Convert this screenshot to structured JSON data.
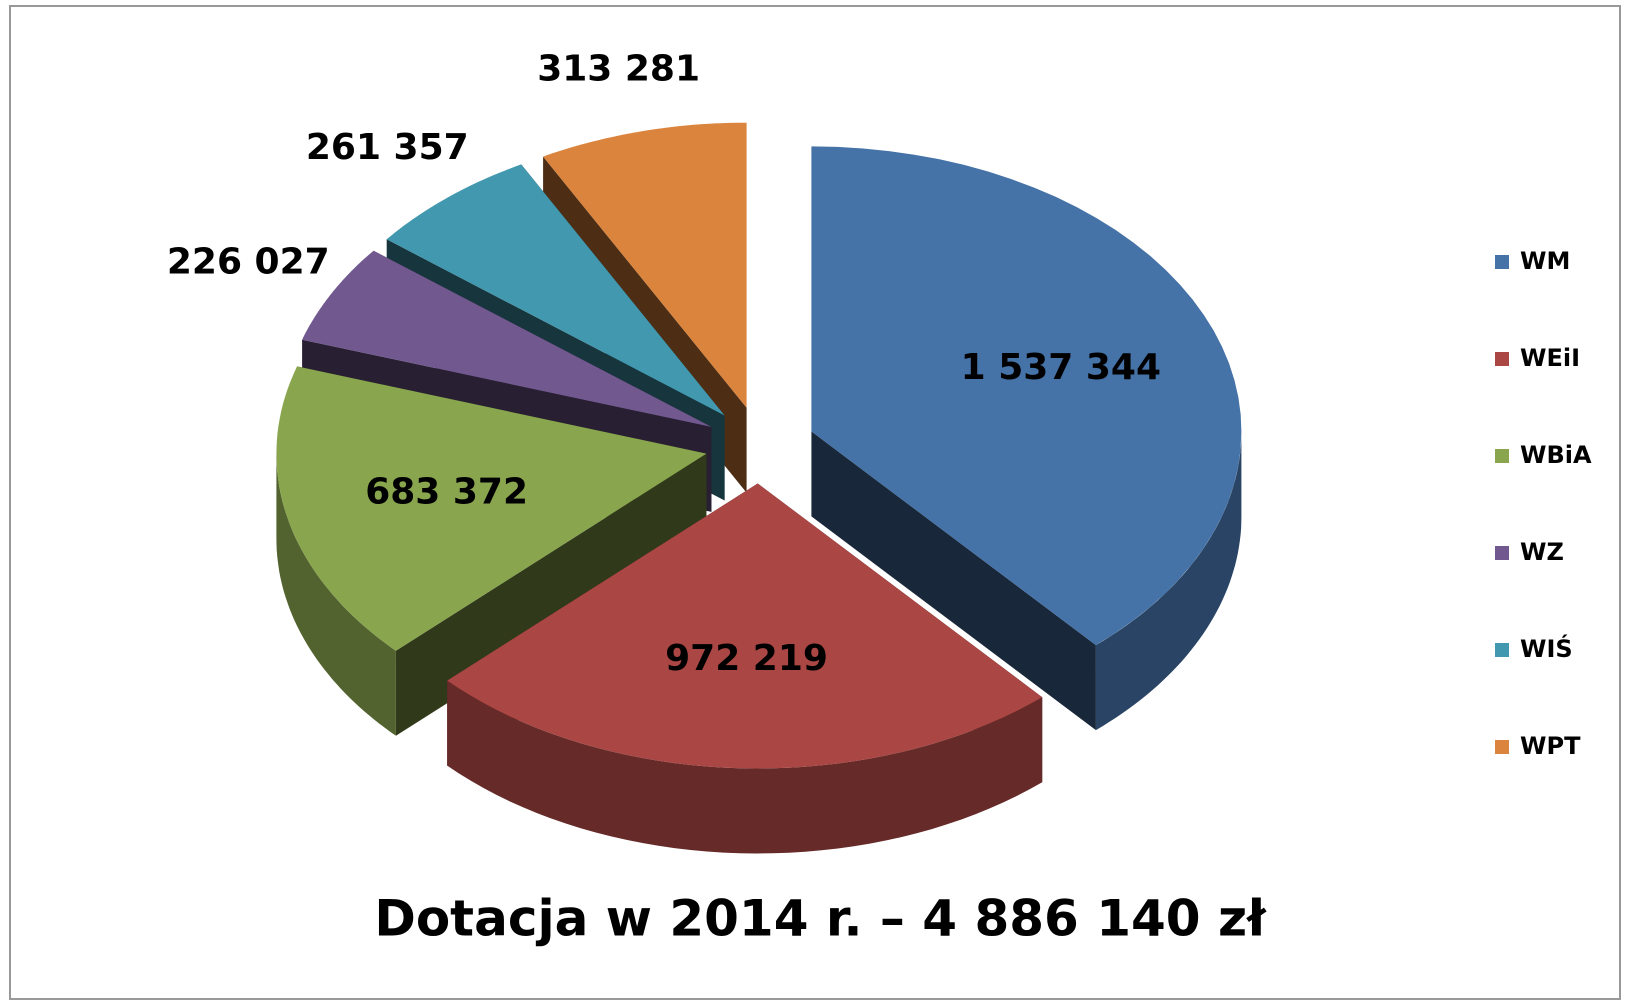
{
  "chart_data": {
    "type": "pie3d",
    "title": "Dotacja w 2014 r. –  4 886 140 zł",
    "categories": [
      "WM",
      "WEiI",
      "WBiA",
      "WZ",
      "WIŚ",
      "WPT"
    ],
    "values": [
      1537344,
      972219,
      683372,
      226027,
      261357,
      313281
    ],
    "value_labels": [
      "1 537 344",
      "972 219",
      "683 372",
      "226 027",
      "261 357",
      "313 281"
    ],
    "colors": [
      "#4572a7",
      "#aa4643",
      "#89a54e",
      "#71588f",
      "#4198af",
      "#db843d"
    ],
    "legend": "right"
  }
}
